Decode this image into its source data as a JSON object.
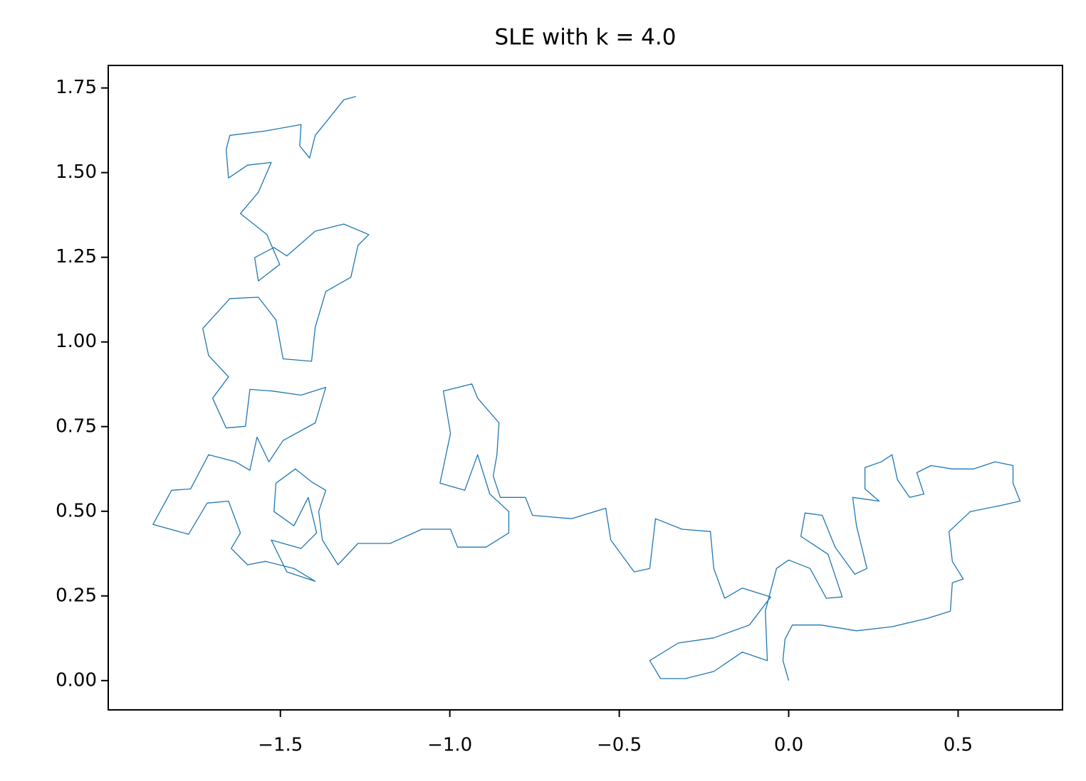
{
  "chart_data": {
    "type": "line",
    "title": "SLE with k = 4.0",
    "color": "#1f77b4",
    "x": [
      0,
      -0.017,
      -0.011,
      0.011,
      0.095,
      0.2,
      0.305,
      0.41,
      0.477,
      0.483,
      0.515,
      0.483,
      0.473,
      0.536,
      0.62,
      0.683,
      0.662,
      0.662,
      0.609,
      0.546,
      0.483,
      0.42,
      0.378,
      0.399,
      0.357,
      0.321,
      0.305,
      0.273,
      0.225,
      0.225,
      0.267,
      0.189,
      0.2,
      0.231,
      0.195,
      0.137,
      0.099,
      0.048,
      0.036,
      0.116,
      0.158,
      0.111,
      0.063,
      0,
      -0.036,
      -0.069,
      -0.063,
      -0.137,
      -0.221,
      -0.305,
      -0.378,
      -0.41,
      -0.326,
      -0.221,
      -0.116,
      -0.053,
      -0.137,
      -0.189,
      -0.221,
      -0.231,
      -0.315,
      -0.393,
      -0.41,
      -0.456,
      -0.525,
      -0.54,
      -0.641,
      -0.756,
      -0.777,
      -0.851,
      -0.872,
      -0.861,
      -0.855,
      -0.918,
      -0.935,
      -1.019,
      -0.998,
      -1.029,
      -0.956,
      -0.918,
      -0.882,
      -0.826,
      -0.826,
      -0.893,
      -0.977,
      -0.998,
      -1.082,
      -1.176,
      -1.271,
      -1.33,
      -1.376,
      -1.387,
      -1.366,
      -1.408,
      -1.456,
      -1.513,
      -1.519,
      -1.46,
      -1.418,
      -1.393,
      -1.439,
      -1.527,
      -1.481,
      -1.397,
      -1.46,
      -1.544,
      -1.597,
      -1.645,
      -1.618,
      -1.653,
      -1.716,
      -1.771,
      -1.876,
      -1.821,
      -1.765,
      -1.712,
      -1.632,
      -1.59,
      -1.569,
      -1.534,
      -1.492,
      -1.397,
      -1.366,
      -1.439,
      -1.523,
      -1.59,
      -1.603,
      -1.66,
      -1.7,
      -1.653,
      -1.712,
      -1.729,
      -1.649,
      -1.565,
      -1.513,
      -1.492,
      -1.408,
      -1.397,
      -1.366,
      -1.292,
      -1.271,
      -1.239,
      -1.313,
      -1.397,
      -1.481,
      -1.519,
      -1.576,
      -1.565,
      -1.502,
      -1.54,
      -1.618,
      -1.565,
      -1.527,
      -1.597,
      -1.653,
      -1.66,
      -1.649,
      -1.544,
      -1.439,
      -1.443,
      -1.414,
      -1.397,
      -1.351,
      -1.313,
      -1.277
    ],
    "values": [
      0,
      0.059,
      0.122,
      0.164,
      0.164,
      0.147,
      0.159,
      0.184,
      0.205,
      0.289,
      0.3,
      0.352,
      0.44,
      0.499,
      0.516,
      0.53,
      0.583,
      0.635,
      0.646,
      0.625,
      0.625,
      0.635,
      0.614,
      0.551,
      0.541,
      0.593,
      0.667,
      0.646,
      0.629,
      0.566,
      0.53,
      0.541,
      0.457,
      0.331,
      0.314,
      0.394,
      0.488,
      0.495,
      0.426,
      0.373,
      0.247,
      0.243,
      0.331,
      0.356,
      0.331,
      0.205,
      0.059,
      0.084,
      0.027,
      0.006,
      0.006,
      0.059,
      0.111,
      0.126,
      0.164,
      0.247,
      0.273,
      0.243,
      0.331,
      0.44,
      0.447,
      0.478,
      0.331,
      0.321,
      0.415,
      0.509,
      0.478,
      0.488,
      0.541,
      0.541,
      0.604,
      0.667,
      0.761,
      0.834,
      0.876,
      0.855,
      0.73,
      0.583,
      0.562,
      0.667,
      0.551,
      0.499,
      0.436,
      0.394,
      0.394,
      0.447,
      0.447,
      0.405,
      0.405,
      0.342,
      0.415,
      0.499,
      0.562,
      0.587,
      0.625,
      0.583,
      0.499,
      0.457,
      0.541,
      0.436,
      0.39,
      0.415,
      0.321,
      0.293,
      0.331,
      0.352,
      0.342,
      0.39,
      0.436,
      0.53,
      0.524,
      0.432,
      0.461,
      0.562,
      0.566,
      0.667,
      0.646,
      0.621,
      0.719,
      0.646,
      0.709,
      0.761,
      0.866,
      0.843,
      0.855,
      0.86,
      0.751,
      0.746,
      0.834,
      0.897,
      0.96,
      1.04,
      1.128,
      1.132,
      1.065,
      0.95,
      0.943,
      1.044,
      1.149,
      1.191,
      1.285,
      1.317,
      1.348,
      1.327,
      1.254,
      1.279,
      1.249,
      1.18,
      1.229,
      1.317,
      1.379,
      1.442,
      1.53,
      1.522,
      1.484,
      1.568,
      1.61,
      1.623,
      1.642,
      1.579,
      1.543,
      1.61,
      1.667,
      1.715,
      1.725
    ],
    "xlim": [
      -2.008,
      0.808
    ],
    "ylim": [
      -0.0865,
      1.8165
    ],
    "xticks": [
      {
        "value": -1.5,
        "label": "−1.5"
      },
      {
        "value": -1.0,
        "label": "−1.0"
      },
      {
        "value": -0.5,
        "label": "−0.5"
      },
      {
        "value": 0,
        "label": "0.0"
      },
      {
        "value": 0.5,
        "label": "0.5"
      }
    ],
    "yticks": [
      {
        "value": 0,
        "label": "0.00"
      },
      {
        "value": 0.25,
        "label": "0.25"
      },
      {
        "value": 0.5,
        "label": "0.50"
      },
      {
        "value": 0.75,
        "label": "0.75"
      },
      {
        "value": 1,
        "label": "1.00"
      },
      {
        "value": 1.25,
        "label": "1.25"
      },
      {
        "value": 1.5,
        "label": "1.50"
      },
      {
        "value": 1.75,
        "label": "1.75"
      }
    ]
  }
}
